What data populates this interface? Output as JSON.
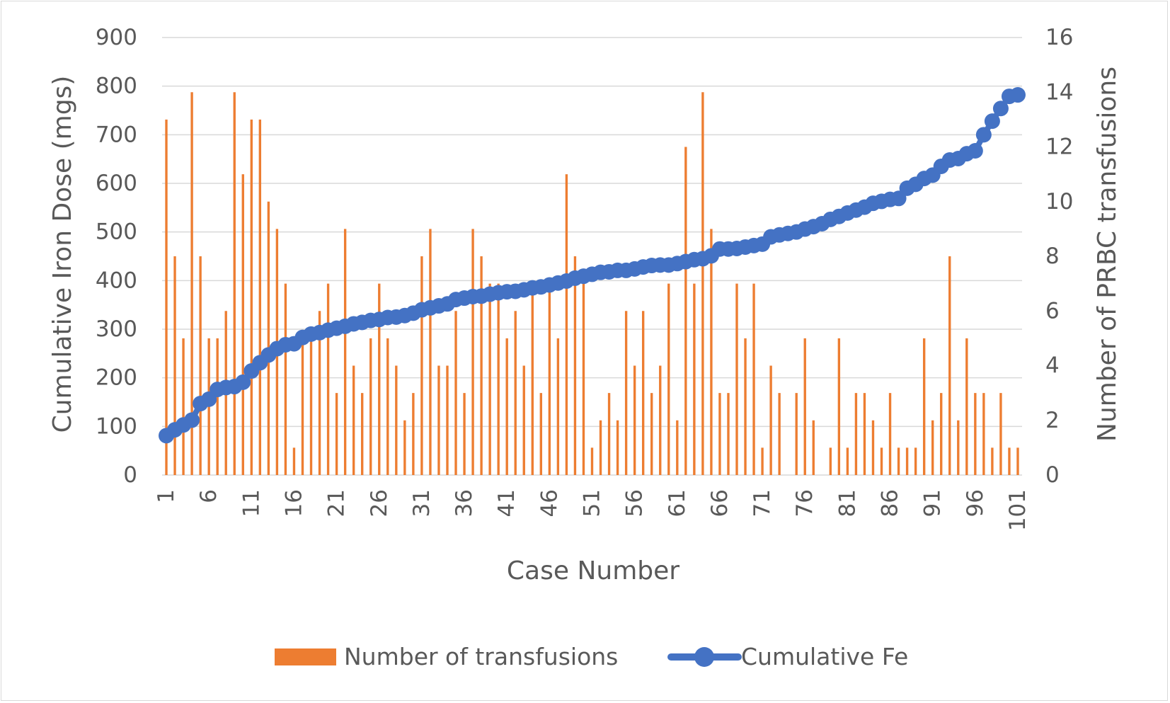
{
  "chart_data": {
    "type": "bar+line",
    "xlabel": "Case Number",
    "y1label": "Cumulative Iron Dose (mgs)",
    "y2label": "Number of PRBC transfusions",
    "y1lim": [
      0,
      900
    ],
    "y1ticks": [
      0,
      100,
      200,
      300,
      400,
      500,
      600,
      700,
      800,
      900
    ],
    "y2lim": [
      0,
      16
    ],
    "y2ticks": [
      0,
      2,
      4,
      6,
      8,
      10,
      12,
      14,
      16
    ],
    "x": [
      1,
      2,
      3,
      4,
      5,
      6,
      7,
      8,
      9,
      10,
      11,
      12,
      13,
      14,
      15,
      16,
      17,
      18,
      19,
      20,
      21,
      22,
      23,
      24,
      25,
      26,
      27,
      28,
      29,
      30,
      31,
      32,
      33,
      34,
      35,
      36,
      37,
      38,
      39,
      40,
      41,
      42,
      43,
      44,
      45,
      46,
      47,
      48,
      49,
      50,
      51,
      52,
      53,
      54,
      55,
      56,
      57,
      58,
      59,
      60,
      61,
      62,
      63,
      64,
      65,
      66,
      67,
      68,
      69,
      70,
      71,
      72,
      73,
      74,
      75,
      76,
      77,
      78,
      79,
      80,
      81,
      82,
      83,
      84,
      85,
      86,
      87,
      88,
      89,
      90,
      91,
      92,
      93,
      94,
      95,
      96,
      97,
      98,
      99,
      100,
      101
    ],
    "x_tick_labels": [
      "1",
      "6",
      "11",
      "16",
      "21",
      "26",
      "31",
      "36",
      "41",
      "46",
      "51",
      "56",
      "61",
      "66",
      "71",
      "76",
      "81",
      "86",
      "91",
      "96",
      "101"
    ],
    "grid": true,
    "legend_position": "bottom",
    "series": [
      {
        "name": "Number of transfusions",
        "type": "bar",
        "axis": "right",
        "color": "#ED7D31",
        "values": [
          13,
          8,
          5,
          14,
          8,
          5,
          5,
          6,
          14,
          11,
          13,
          13,
          10,
          9,
          7,
          1,
          5,
          5,
          6,
          7,
          3,
          9,
          4,
          3,
          5,
          7,
          5,
          4,
          2,
          3,
          8,
          9,
          4,
          4,
          6,
          3,
          9,
          8,
          7,
          7,
          5,
          6,
          4,
          7,
          3,
          7,
          5,
          11,
          8,
          7,
          1,
          2,
          3,
          2,
          6,
          4,
          6,
          3,
          4,
          7,
          2,
          12,
          7,
          14,
          9,
          3,
          3,
          7,
          5,
          7,
          1,
          4,
          3,
          0,
          3,
          5,
          2,
          0,
          1,
          5,
          1,
          3,
          3,
          2,
          1,
          3,
          1,
          1,
          1,
          5,
          2,
          3,
          8,
          2,
          5,
          3,
          3,
          1,
          3,
          1,
          1
        ]
      },
      {
        "name": "Cumulative Fe",
        "type": "line",
        "axis": "left",
        "color": "#4472C4",
        "values": [
          81,
          93,
          103,
          113,
          147,
          156,
          176,
          180,
          182,
          191,
          214,
          231,
          247,
          260,
          268,
          270,
          283,
          290,
          293,
          298,
          302,
          306,
          311,
          314,
          318,
          320,
          324,
          325,
          328,
          333,
          340,
          344,
          348,
          352,
          361,
          364,
          367,
          368,
          372,
          375,
          377,
          378,
          381,
          385,
          387,
          391,
          395,
          399,
          405,
          409,
          413,
          417,
          418,
          421,
          421,
          424,
          428,
          431,
          432,
          432,
          435,
          439,
          443,
          445,
          451,
          465,
          465,
          466,
          469,
          472,
          475,
          490,
          494,
          497,
          500,
          506,
          511,
          517,
          526,
          532,
          539,
          545,
          551,
          559,
          563,
          567,
          569,
          590,
          598,
          610,
          617,
          635,
          648,
          651,
          661,
          667,
          700,
          728,
          754,
          779,
          782
        ]
      }
    ]
  }
}
